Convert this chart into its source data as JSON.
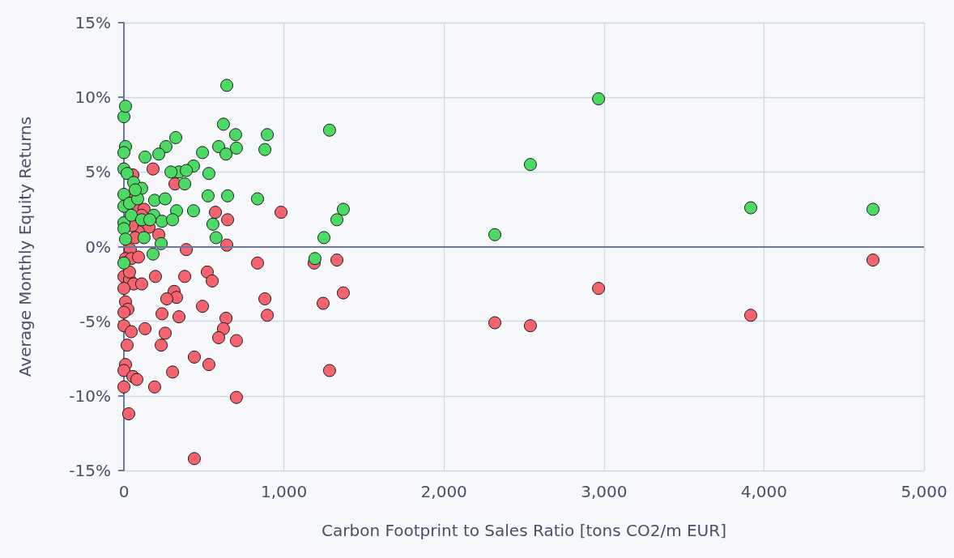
{
  "chart_data": {
    "type": "scatter",
    "xlabel": "Carbon Footprint to Sales Ratio [tons CO2/m EUR]",
    "ylabel": "Average Monthly Equity Returns",
    "xlim": [
      0,
      5000
    ],
    "xticks": [
      0,
      {
        "value": 1000,
        "label": "1,000"
      },
      {
        "value": 2000,
        "label": "2,000"
      },
      {
        "value": 3000,
        "label": "3,000"
      },
      {
        "value": 4000,
        "label": "4,000"
      },
      {
        "value": 5000,
        "label": "5,000"
      }
    ],
    "ylim": [
      -15,
      15
    ],
    "yticks": [
      {
        "value": -15,
        "label": "-15%"
      },
      {
        "value": -10,
        "label": "-10%"
      },
      {
        "value": -5,
        "label": "-5%"
      },
      {
        "value": 0,
        "label": "0%"
      },
      {
        "value": 5,
        "label": "5%"
      },
      {
        "value": 10,
        "label": "10%"
      },
      {
        "value": 15,
        "label": "15%"
      }
    ],
    "grid": true,
    "ref_lines": [
      {
        "axis": "y",
        "value": 0
      }
    ],
    "marker": "circle",
    "series": [
      {
        "color": "#4cd964",
        "x": [
          622,
          491,
          592,
          638,
          703,
          896,
          881,
          835,
          648,
          1285,
          1250,
          1331,
          1371,
          1194,
          2318,
          2540,
          2966,
          3917,
          4681,
          643,
          0,
          10,
          10,
          0,
          324,
          263,
          218,
          132,
          698,
          435,
          344,
          294,
          390,
          531,
          380,
          0,
          20,
          61,
          111,
          192,
          258,
          526,
          435,
          329,
          187,
          238,
          304,
          556,
          576,
          233,
          182,
          126,
          0,
          0,
          0,
          0,
          10,
          0,
          35,
          46,
          86,
          111,
          162,
          71
        ],
        "values": [
          8.2,
          6.3,
          6.7,
          6.2,
          6.6,
          7.5,
          6.5,
          3.2,
          3.4,
          7.8,
          0.6,
          1.8,
          2.5,
          -0.8,
          0.8,
          5.5,
          9.9,
          2.6,
          2.5,
          10.8,
          8.7,
          9.4,
          6.7,
          6.3,
          7.3,
          6.7,
          6.2,
          6.0,
          7.5,
          5.4,
          5.0,
          5.0,
          5.1,
          4.9,
          4.2,
          5.2,
          4.9,
          4.3,
          3.9,
          3.1,
          3.2,
          3.4,
          2.4,
          2.4,
          2.1,
          1.7,
          1.8,
          1.5,
          0.6,
          0.2,
          -0.5,
          0.6,
          3.5,
          2.7,
          1.6,
          1.2,
          0.5,
          -1.1,
          2.9,
          2.1,
          3.2,
          1.8,
          1.8,
          3.8
        ]
      },
      {
        "color": "#f5636f",
        "x": [
          643,
          835,
          491,
          638,
          622,
          592,
          531,
          703,
          881,
          896,
          1189,
          1331,
          1371,
          1245,
          1285,
          2318,
          2540,
          2966,
          3917,
          4681,
          319,
          182,
          56,
          71,
          76,
          126,
          111,
          157,
          91,
          51,
          71,
          218,
          390,
          572,
          648,
          982,
          40,
          10,
          46,
          91,
          0,
          35,
          61,
          111,
          197,
          380,
          521,
          552,
          0,
          314,
          329,
          268,
          10,
          25,
          0,
          238,
          344,
          0,
          46,
          132,
          258,
          20,
          233,
          440,
          10,
          0,
          304,
          56,
          81,
          192,
          0,
          30,
          440,
          703,
          35
        ],
        "values": [
          0.1,
          -1.1,
          -4.0,
          -4.8,
          -5.5,
          -6.1,
          -7.9,
          -10.1,
          -3.5,
          -4.6,
          -1.1,
          -0.9,
          -3.1,
          -3.8,
          -8.3,
          -5.1,
          -5.3,
          -2.8,
          -4.6,
          -0.9,
          4.2,
          5.2,
          4.8,
          3.3,
          2.6,
          2.5,
          2.1,
          1.3,
          1.0,
          1.4,
          0.6,
          0.8,
          -0.2,
          2.3,
          1.8,
          2.3,
          -0.2,
          -0.8,
          -0.8,
          -0.7,
          -2.0,
          -2.2,
          -2.5,
          -2.5,
          -2.0,
          -2.0,
          -1.7,
          -2.3,
          -2.8,
          -3.0,
          -3.4,
          -3.5,
          -3.7,
          -4.2,
          -4.4,
          -4.5,
          -4.7,
          -5.3,
          -5.7,
          -5.5,
          -5.8,
          -6.6,
          -6.6,
          -7.4,
          -7.9,
          -8.3,
          -8.4,
          -8.7,
          -8.9,
          -9.4,
          -9.4,
          -11.2,
          -14.2,
          -6.3,
          -1.7
        ]
      }
    ]
  }
}
